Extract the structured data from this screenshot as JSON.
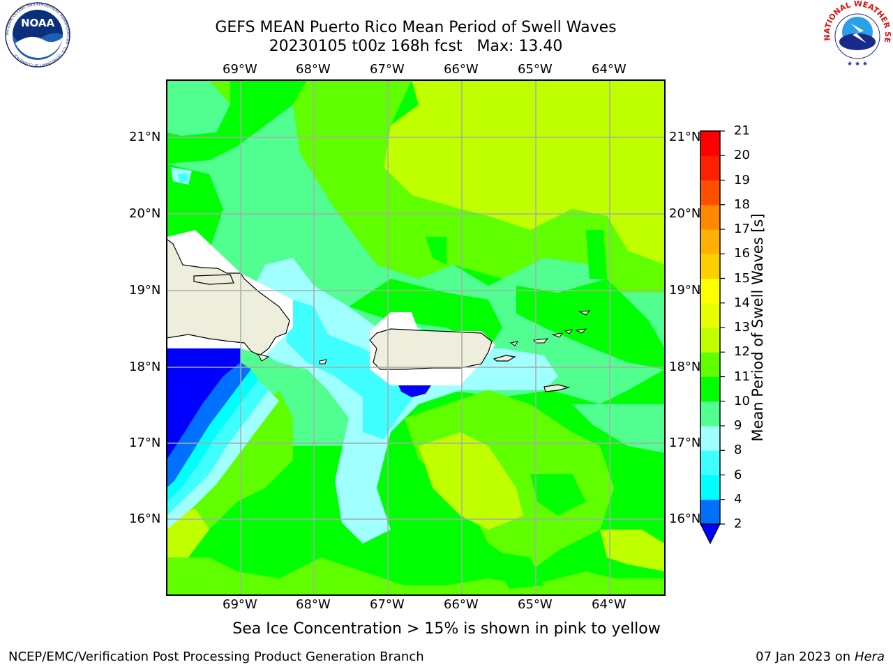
{
  "title": {
    "line1": "GEFS MEAN Puerto Rico Mean Period of Swell Waves",
    "line2": "20230105 t00z 168h fcst   Max: 13.40"
  },
  "logos": {
    "left": {
      "icon": "noaa-logo",
      "text": "NOAA",
      "ring_text": "NATIONAL OCEANIC AND ATMOSPHERIC ADMINISTRATION · U.S. DEPARTMENT OF COMMERCE"
    },
    "right": {
      "icon": "nws-logo",
      "ring_text": "NATIONAL WEATHER SERVICE"
    }
  },
  "map": {
    "lon_labels": [
      "69°W",
      "68°W",
      "67°W",
      "66°W",
      "65°W",
      "64°W"
    ],
    "lat_labels": [
      "21°N",
      "20°N",
      "19°N",
      "18°N",
      "17°N",
      "16°N"
    ],
    "land_color": "#eeeedc",
    "missing_color": "#ffffff"
  },
  "colorbar": {
    "title": "Mean Period of Swell Waves [s]",
    "ticks": [
      "2",
      "4",
      "6",
      "8",
      "9",
      "10",
      "11",
      "12",
      "13",
      "14",
      "15",
      "16",
      "17",
      "18",
      "19",
      "20",
      "21"
    ],
    "colors": [
      "#0000ff",
      "#0070ff",
      "#00ffff",
      "#40ffff",
      "#a0ffff",
      "#50ff90",
      "#00ff00",
      "#60ff00",
      "#c0ff00",
      "#e8ff00",
      "#ffff00",
      "#ffd000",
      "#ffb000",
      "#ff8800",
      "#ff5000",
      "#ff2000",
      "#ff0000"
    ],
    "extend_color": "#0000ff"
  },
  "note": "Sea Ice Concentration > 15% is shown in pink to yellow",
  "credit_left": "NCEP/EMC/Verification Post Processing Product Generation Branch",
  "credit_date": "07 Jan 2023 on ",
  "credit_host": "Hera"
}
